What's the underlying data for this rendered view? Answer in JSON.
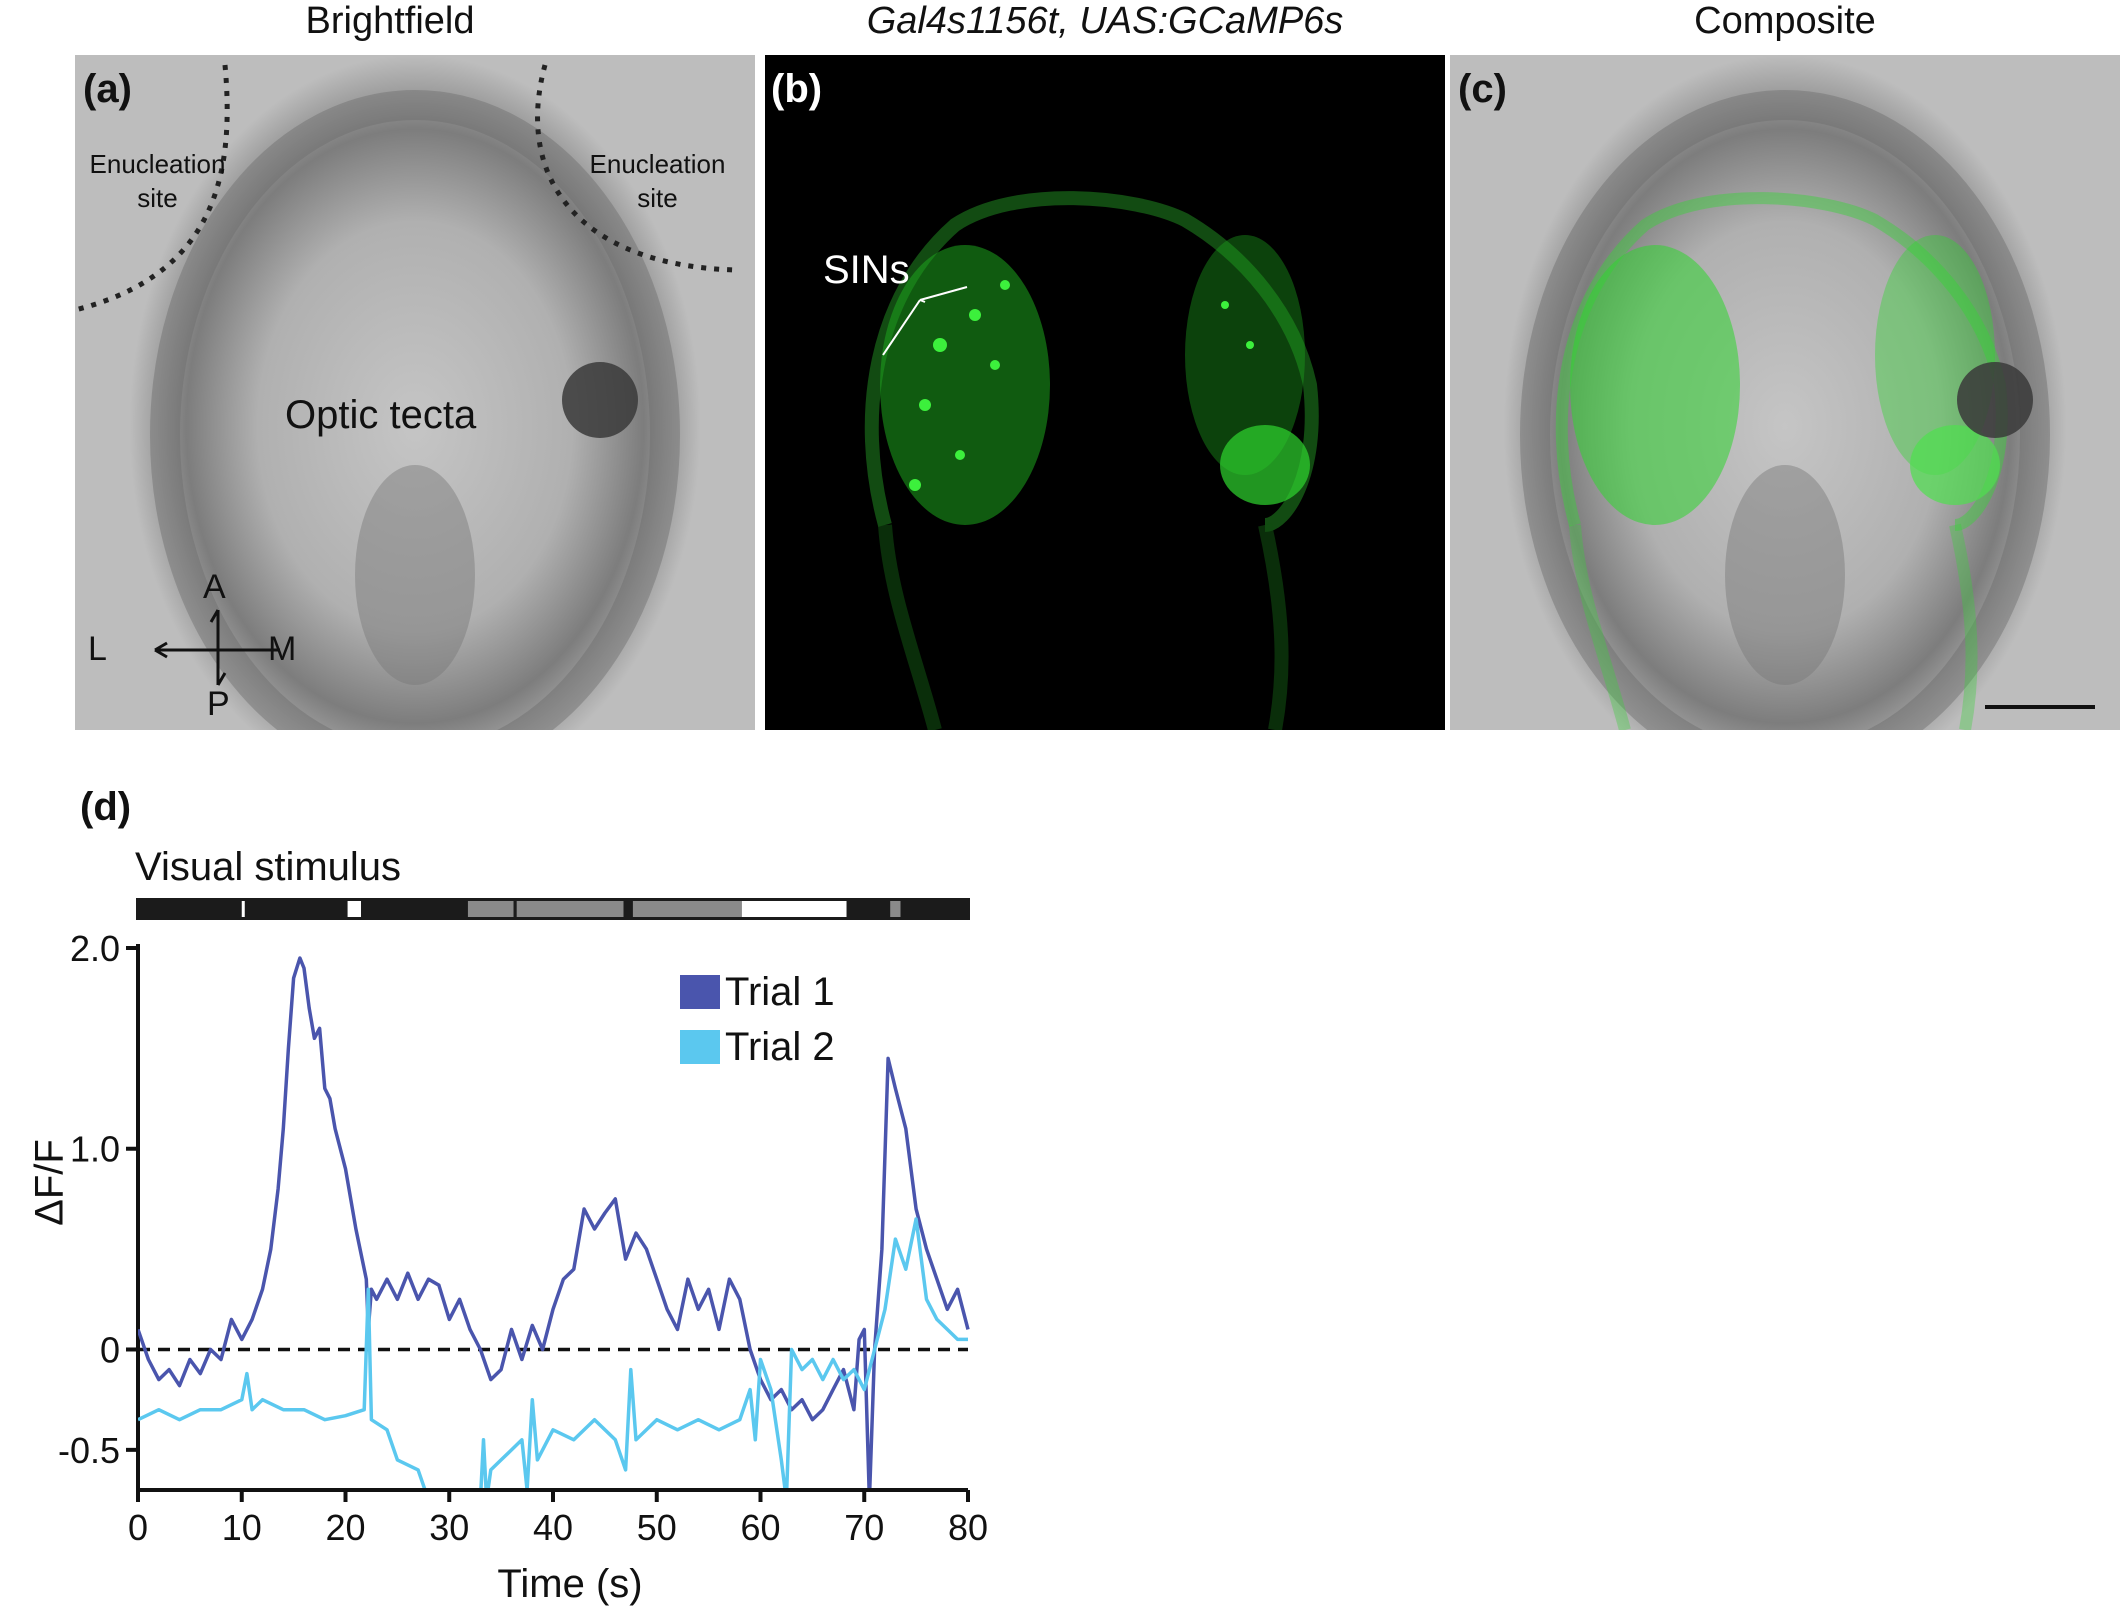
{
  "panels": {
    "a": {
      "label": "(a)",
      "title": "Brightfield",
      "enucleation_left": [
        "Enucleation",
        "site"
      ],
      "enucleation_right": [
        "Enucleation",
        "site"
      ],
      "region": "Optic tecta",
      "compass": {
        "A": "A",
        "L": "L",
        "M": "M",
        "P": "P"
      }
    },
    "b": {
      "label": "(b)",
      "title": "Gal4s1156t, UAS:GCaMP6s",
      "annotation": "SINs"
    },
    "c": {
      "label": "(c)",
      "title": "Composite"
    },
    "d": {
      "label": "(d)",
      "stimulus_label": "Visual stimulus"
    }
  },
  "colors": {
    "trial1": "#4a55ad",
    "trial2": "#5bc8ef",
    "fluor": "#2fd62f"
  },
  "stimulus_bar": [
    {
      "start": 0,
      "end": 10,
      "shade": "black"
    },
    {
      "start": 10,
      "end": 10.3,
      "shade": "white"
    },
    {
      "start": 10.3,
      "end": 20.2,
      "shade": "black"
    },
    {
      "start": 20.2,
      "end": 21.5,
      "shade": "white"
    },
    {
      "start": 21.5,
      "end": 31.8,
      "shade": "black"
    },
    {
      "start": 31.8,
      "end": 36.2,
      "shade": "gray"
    },
    {
      "start": 36.2,
      "end": 36.5,
      "shade": "black"
    },
    {
      "start": 36.5,
      "end": 46.8,
      "shade": "gray"
    },
    {
      "start": 46.8,
      "end": 47.7,
      "shade": "black"
    },
    {
      "start": 47.7,
      "end": 58.2,
      "shade": "gray"
    },
    {
      "start": 58.2,
      "end": 68.3,
      "shade": "white"
    },
    {
      "start": 68.3,
      "end": 72.5,
      "shade": "black"
    },
    {
      "start": 72.5,
      "end": 73.5,
      "shade": "gray"
    },
    {
      "start": 73.5,
      "end": 80,
      "shade": "black"
    }
  ],
  "chart_data": {
    "type": "line",
    "title": "",
    "xlabel": "Time (s)",
    "ylabel": "ΔF/F",
    "xlim": [
      0,
      80
    ],
    "ylim": [
      -0.7,
      2.0
    ],
    "xticks": [
      "0",
      "10",
      "20",
      "30",
      "40",
      "50",
      "60",
      "70",
      "80"
    ],
    "yticks": [
      {
        "v": 2.0,
        "t": "2.0"
      },
      {
        "v": 1.0,
        "t": "1.0"
      },
      {
        "v": 0,
        "t": "0"
      },
      {
        "v": -0.5,
        "t": "-0.5"
      }
    ],
    "baseline": 0,
    "legend": "top-right",
    "series": [
      {
        "name": "Trial 1",
        "points": [
          [
            0,
            0.1
          ],
          [
            1,
            -0.05
          ],
          [
            2,
            -0.15
          ],
          [
            3,
            -0.1
          ],
          [
            4,
            -0.18
          ],
          [
            5,
            -0.05
          ],
          [
            6,
            -0.12
          ],
          [
            7,
            0.0
          ],
          [
            8,
            -0.05
          ],
          [
            9,
            0.15
          ],
          [
            10,
            0.05
          ],
          [
            11,
            0.15
          ],
          [
            12,
            0.3
          ],
          [
            12.8,
            0.5
          ],
          [
            13.5,
            0.8
          ],
          [
            14,
            1.1
          ],
          [
            14.5,
            1.5
          ],
          [
            15,
            1.85
          ],
          [
            15.6,
            1.95
          ],
          [
            16,
            1.9
          ],
          [
            16.5,
            1.7
          ],
          [
            17,
            1.55
          ],
          [
            17.5,
            1.6
          ],
          [
            18,
            1.3
          ],
          [
            18.5,
            1.25
          ],
          [
            19,
            1.1
          ],
          [
            20,
            0.9
          ],
          [
            21,
            0.6
          ],
          [
            22,
            0.35
          ],
          [
            22.2,
            0.1
          ],
          [
            22.5,
            0.3
          ],
          [
            23,
            0.25
          ],
          [
            24,
            0.35
          ],
          [
            25,
            0.25
          ],
          [
            26,
            0.38
          ],
          [
            27,
            0.25
          ],
          [
            28,
            0.35
          ],
          [
            29,
            0.32
          ],
          [
            30,
            0.15
          ],
          [
            31,
            0.25
          ],
          [
            32,
            0.1
          ],
          [
            33,
            0.0
          ],
          [
            34,
            -0.15
          ],
          [
            35,
            -0.1
          ],
          [
            36,
            0.1
          ],
          [
            37,
            -0.05
          ],
          [
            38,
            0.12
          ],
          [
            39,
            0.0
          ],
          [
            40,
            0.2
          ],
          [
            41,
            0.35
          ],
          [
            42,
            0.4
          ],
          [
            43,
            0.7
          ],
          [
            44,
            0.6
          ],
          [
            45,
            0.68
          ],
          [
            46,
            0.75
          ],
          [
            47,
            0.45
          ],
          [
            48,
            0.58
          ],
          [
            49,
            0.5
          ],
          [
            50,
            0.35
          ],
          [
            51,
            0.2
          ],
          [
            52,
            0.1
          ],
          [
            53,
            0.35
          ],
          [
            54,
            0.2
          ],
          [
            55,
            0.3
          ],
          [
            56,
            0.1
          ],
          [
            57,
            0.35
          ],
          [
            58,
            0.25
          ],
          [
            59,
            0.0
          ],
          [
            60,
            -0.15
          ],
          [
            61,
            -0.25
          ],
          [
            62,
            -0.2
          ],
          [
            63,
            -0.3
          ],
          [
            64,
            -0.25
          ],
          [
            65,
            -0.35
          ],
          [
            66,
            -0.3
          ],
          [
            67,
            -0.2
          ],
          [
            68,
            -0.1
          ],
          [
            69,
            -0.3
          ],
          [
            69.5,
            0.05
          ],
          [
            70,
            0.1
          ],
          [
            70.5,
            -0.75
          ],
          [
            71,
            0.0
          ],
          [
            71.7,
            0.5
          ],
          [
            72.3,
            1.45
          ],
          [
            73,
            1.3
          ],
          [
            74,
            1.1
          ],
          [
            75,
            0.7
          ],
          [
            76,
            0.5
          ],
          [
            77,
            0.35
          ],
          [
            78,
            0.2
          ],
          [
            79,
            0.3
          ],
          [
            80,
            0.1
          ]
        ]
      },
      {
        "name": "Trial 2",
        "points": [
          [
            0,
            -0.35
          ],
          [
            2,
            -0.3
          ],
          [
            4,
            -0.35
          ],
          [
            6,
            -0.3
          ],
          [
            8,
            -0.3
          ],
          [
            10,
            -0.25
          ],
          [
            10.5,
            -0.12
          ],
          [
            11,
            -0.3
          ],
          [
            12,
            -0.25
          ],
          [
            14,
            -0.3
          ],
          [
            16,
            -0.3
          ],
          [
            18,
            -0.35
          ],
          [
            20,
            -0.33
          ],
          [
            21.8,
            -0.3
          ],
          [
            22.2,
            0.3
          ],
          [
            22.5,
            -0.35
          ],
          [
            24,
            -0.4
          ],
          [
            25,
            -0.55
          ],
          [
            27,
            -0.6
          ],
          [
            28,
            -0.75
          ],
          [
            33,
            -0.75
          ],
          [
            33.3,
            -0.45
          ],
          [
            33.6,
            -0.75
          ],
          [
            34,
            -0.6
          ],
          [
            35,
            -0.55
          ],
          [
            36,
            -0.5
          ],
          [
            37,
            -0.45
          ],
          [
            37.5,
            -0.7
          ],
          [
            38,
            -0.25
          ],
          [
            38.5,
            -0.55
          ],
          [
            40,
            -0.4
          ],
          [
            42,
            -0.45
          ],
          [
            44,
            -0.35
          ],
          [
            46,
            -0.45
          ],
          [
            47,
            -0.6
          ],
          [
            47.5,
            -0.1
          ],
          [
            48,
            -0.45
          ],
          [
            50,
            -0.35
          ],
          [
            52,
            -0.4
          ],
          [
            54,
            -0.35
          ],
          [
            56,
            -0.4
          ],
          [
            58,
            -0.35
          ],
          [
            59,
            -0.2
          ],
          [
            59.5,
            -0.45
          ],
          [
            60,
            -0.05
          ],
          [
            61,
            -0.2
          ],
          [
            62,
            -0.55
          ],
          [
            62.5,
            -0.75
          ],
          [
            63,
            0.0
          ],
          [
            64,
            -0.1
          ],
          [
            65,
            -0.05
          ],
          [
            66,
            -0.15
          ],
          [
            67,
            -0.05
          ],
          [
            68,
            -0.15
          ],
          [
            69,
            -0.1
          ],
          [
            70,
            -0.2
          ],
          [
            71,
            0.0
          ],
          [
            72,
            0.2
          ],
          [
            73,
            0.55
          ],
          [
            74,
            0.4
          ],
          [
            75,
            0.65
          ],
          [
            76,
            0.25
          ],
          [
            77,
            0.15
          ],
          [
            78,
            0.1
          ],
          [
            79,
            0.05
          ],
          [
            80,
            0.05
          ]
        ]
      }
    ]
  }
}
